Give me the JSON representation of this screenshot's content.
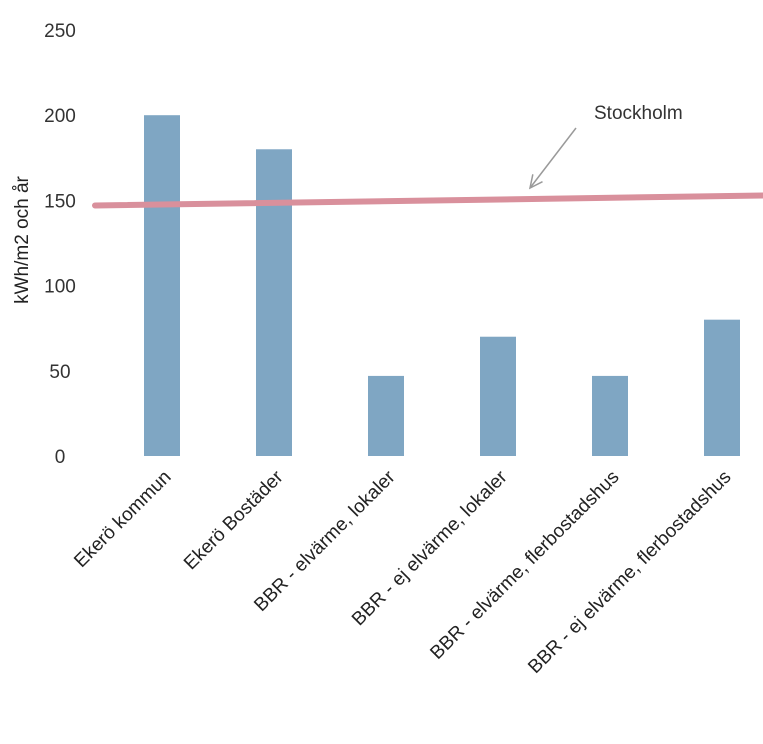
{
  "chart_data": {
    "type": "bar",
    "title": "",
    "xlabel": "",
    "ylabel": "kWh/m2 och år",
    "ylim": [
      0,
      250
    ],
    "yticks": [
      0,
      50,
      100,
      150,
      200,
      250
    ],
    "grid": false,
    "categories": [
      "Ekerö kommun",
      "Ekerö Bostäder",
      "BBR - elvärme, lokaler",
      "BBR - ej elvärme, lokaler",
      "BBR - elvärme, flerbostadshus",
      "BBR - ej elvärme, flerbostadshus"
    ],
    "series": [
      {
        "values": [
          200,
          180,
          47,
          70,
          47,
          80
        ]
      }
    ],
    "reference_line": {
      "label": "Stockholm",
      "value": 147
    },
    "colors": {
      "bar": "#7fa6c3",
      "reference_line": "#d9909c",
      "arrow": "#9a9a9a"
    }
  }
}
